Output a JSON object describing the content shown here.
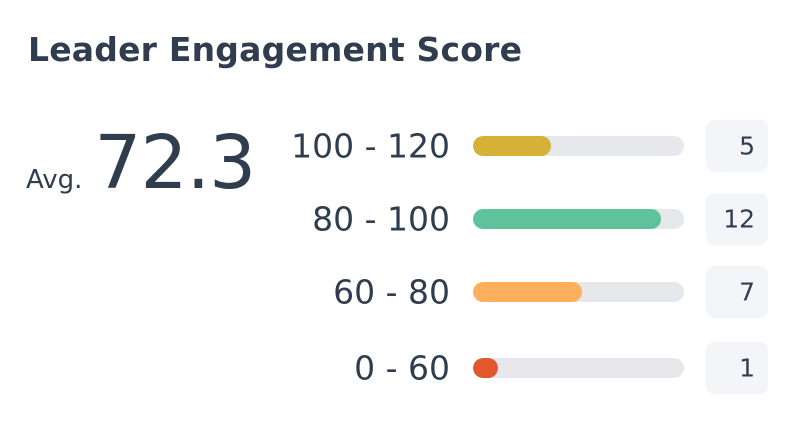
{
  "title": "Leader Engagement Score",
  "average": {
    "label": "Avg.",
    "value": "72.3"
  },
  "chart_data": {
    "type": "bar",
    "orientation": "horizontal",
    "categories": [
      "100 - 120",
      "80 - 100",
      "60 - 80",
      "0 - 60"
    ],
    "values": [
      5,
      12,
      7,
      1
    ],
    "value_labels": [
      "5",
      "12",
      "7",
      "1"
    ],
    "xlim": [
      0,
      13.5
    ],
    "colors": [
      "#d4b137",
      "#5ec29a",
      "#fdaf5c",
      "#e2572c"
    ],
    "track_color": "#e6e8ec",
    "title": "Leader Engagement Score",
    "grid": false
  }
}
